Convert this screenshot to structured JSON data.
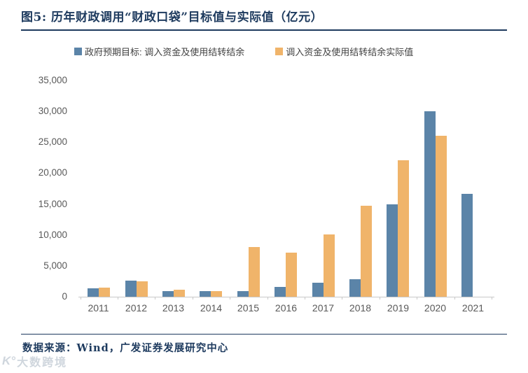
{
  "header": {
    "title": "图5:  历年财政调用“财政口袋”目标值与实际值（亿元）"
  },
  "legend": [
    {
      "label": "政府预期目标: 调入资金及使用结转结余",
      "color": "#5b84a8"
    },
    {
      "label": "调入资金及使用结转结余实际值",
      "color": "#f0b46a"
    }
  ],
  "chart_data": {
    "type": "bar",
    "title": "历年财政调用“财政口袋”目标值与实际值（亿元）",
    "categories": [
      "2011",
      "2012",
      "2013",
      "2014",
      "2015",
      "2016",
      "2017",
      "2018",
      "2019",
      "2020",
      "2021"
    ],
    "series": [
      {
        "name": "政府预期目标: 调入资金及使用结转结余",
        "key": "target",
        "color": "#5b84a8",
        "values": [
          1400,
          2600,
          850,
          900,
          850,
          1550,
          2300,
          2800,
          15000,
          30000,
          16700
        ]
      },
      {
        "name": "调入资金及使用结转结余实际值",
        "key": "actual",
        "color": "#f0b46a",
        "values": [
          1450,
          2500,
          1100,
          850,
          8000,
          7100,
          10100,
          14700,
          22100,
          26100,
          null
        ]
      }
    ],
    "ylim": [
      0,
      35000
    ],
    "yticks": [
      0,
      5000,
      10000,
      15000,
      20000,
      25000,
      30000,
      35000
    ],
    "ytick_labels": [
      "0",
      "5,000",
      "10,000",
      "15,000",
      "20,000",
      "25,000",
      "30,000",
      "35,000"
    ],
    "xlabel": "",
    "ylabel": "",
    "grid": false,
    "legend_position": "top"
  },
  "footer": {
    "source": "数据来源：Wind，广发证券发展研究中心"
  },
  "watermark": {
    "icon": "K°",
    "text": "大数跨境"
  },
  "colors": {
    "accent_navy": "#1d3a5e",
    "bar_blue": "#5b84a8",
    "bar_orange": "#f0b46a",
    "axis_gray": "#c9c9c9",
    "tick_text": "#595959"
  }
}
